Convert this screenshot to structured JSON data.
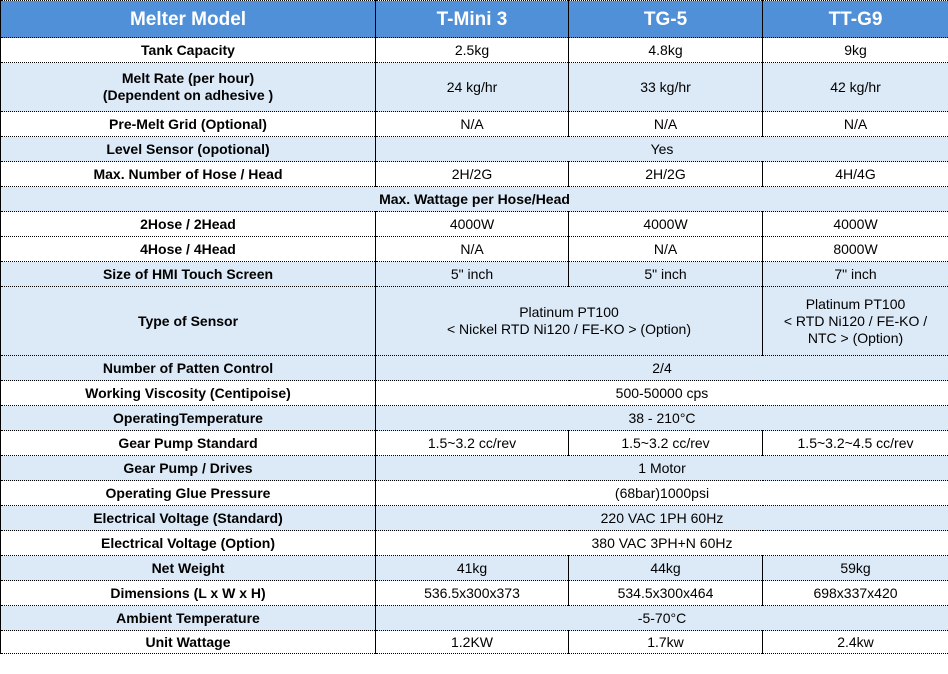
{
  "header": {
    "label": "Melter Model",
    "models": [
      "T-Mini 3",
      "TG-5",
      "TT-G9"
    ]
  },
  "rows": [
    {
      "label": "Tank Capacity",
      "values": [
        "2.5kg",
        "4.8kg",
        "9kg"
      ]
    },
    {
      "label": "Melt Rate (per hour)\n(Dependent on adhesive )",
      "values": [
        "24 kg/hr",
        "33 kg/hr",
        "42 kg/hr"
      ]
    },
    {
      "label": "Pre-Melt Grid (Optional)",
      "values": [
        "N/A",
        "N/A",
        "N/A"
      ]
    },
    {
      "label": "Level Sensor (opotional)",
      "span": "Yes"
    },
    {
      "label": "Max. Number of Hose / Head",
      "values": [
        "2H/2G",
        "2H/2G",
        "4H/4G"
      ]
    },
    {
      "section": "Max. Wattage per Hose/Head"
    },
    {
      "label": "2Hose / 2Head",
      "values": [
        "4000W",
        "4000W",
        "4000W"
      ]
    },
    {
      "label": "4Hose / 4Head",
      "values": [
        "N/A",
        "N/A",
        "8000W"
      ]
    },
    {
      "label": "Size of HMI Touch Screen",
      "values": [
        "5\" inch",
        "5\" inch",
        "7\" inch"
      ]
    },
    {
      "label": "Type of Sensor",
      "span2": "Platinum PT100\n< Nickel RTD Ni120 / FE-KO > (Option)",
      "last": "Platinum PT100\n< RTD Ni120 / FE-KO /\nNTC > (Option)"
    },
    {
      "label": "Number of Patten Control",
      "span": "2/4"
    },
    {
      "label": "Working Viscosity  (Centipoise)",
      "span": "500-50000 cps"
    },
    {
      "label": "OperatingTemperature",
      "span": "38 - 210°C"
    },
    {
      "label": "Gear Pump Standard",
      "values": [
        "1.5~3.2 cc/rev",
        "1.5~3.2 cc/rev",
        "1.5~3.2~4.5 cc/rev"
      ]
    },
    {
      "label": "Gear Pump / Drives",
      "span": "1 Motor"
    },
    {
      "label": "Operating Glue Pressure",
      "span": "(68bar)1000psi"
    },
    {
      "label": "Electrical Voltage (Standard)",
      "span": "220 VAC 1PH 60Hz"
    },
    {
      "label": "Electrical Voltage (Option)",
      "span": "380 VAC 3PH+N 60Hz"
    },
    {
      "label": "Net Weight",
      "values": [
        "41kg",
        "44kg",
        "59kg"
      ]
    },
    {
      "label": "Dimensions  (L x W x H)",
      "values": [
        "536.5x300x373",
        "534.5x300x464",
        "698x337x420"
      ]
    },
    {
      "label": "Ambient Temperature",
      "span": "-5-70°C"
    },
    {
      "label": "Unit Wattage",
      "values": [
        "1.2KW",
        "1.7kw",
        "2.4kw"
      ]
    }
  ],
  "colors": {
    "header": "#4f90d8",
    "band": "#dce9f7"
  }
}
